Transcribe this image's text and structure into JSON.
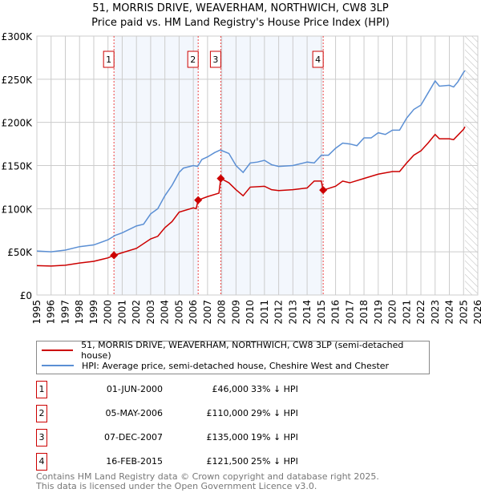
{
  "chart_data": {
    "type": "line",
    "title": "51, MORRIS DRIVE, WEAVERHAM, NORTHWICH, CW8 3LP",
    "subtitle": "Price paid vs. HM Land Registry's House Price Index (HPI)",
    "xlim": [
      1995,
      2026
    ],
    "ylim": [
      0,
      300000
    ],
    "yticks": [
      {
        "v": 0,
        "label": "£0"
      },
      {
        "v": 50000,
        "label": "£50K"
      },
      {
        "v": 100000,
        "label": "£100K"
      },
      {
        "v": 150000,
        "label": "£150K"
      },
      {
        "v": 200000,
        "label": "£200K"
      },
      {
        "v": 250000,
        "label": "£250K"
      },
      {
        "v": 300000,
        "label": "£300K"
      }
    ],
    "xticks": [
      "1995",
      "1996",
      "1997",
      "1998",
      "1999",
      "2000",
      "2001",
      "2002",
      "2003",
      "2004",
      "2005",
      "2006",
      "2007",
      "2008",
      "2009",
      "2010",
      "2011",
      "2012",
      "2013",
      "2014",
      "2015",
      "2016",
      "2017",
      "2018",
      "2019",
      "2020",
      "2021",
      "2022",
      "2023",
      "2024",
      "2025",
      "2026"
    ],
    "grid": true,
    "shaded_ranges": [
      [
        2000.42,
        2006.34
      ],
      [
        2007.93,
        2015.13
      ]
    ],
    "forecast_hatch_from": 2025.1,
    "series": [
      {
        "name": "51, MORRIS DRIVE, WEAVERHAM, NORTHWICH, CW8 3LP (semi-detached house)",
        "color": "#cc0000",
        "x": [
          1995,
          1996,
          1997,
          1998,
          1999,
          2000,
          2000.42,
          2001,
          2002,
          2003,
          2003.5,
          2004,
          2004.5,
          2005,
          2006,
          2006.2,
          2006.34,
          2007,
          2007.8,
          2007.93,
          2008.5,
          2009,
          2009.5,
          2010,
          2011,
          2011.5,
          2012,
          2013,
          2014,
          2014.5,
          2015.0,
          2015.13,
          2016,
          2016.5,
          2017,
          2018,
          2019,
          2020,
          2020.5,
          2021,
          2021.5,
          2022,
          2022.5,
          2023,
          2023.3,
          2024,
          2024.3,
          2025,
          2025.1
        ],
        "y": [
          34000,
          33500,
          34500,
          37000,
          39000,
          43000,
          46000,
          49000,
          54000,
          65000,
          68000,
          78000,
          85000,
          96000,
          101000,
          100000,
          110000,
          114000,
          118000,
          135000,
          130000,
          122000,
          115000,
          125000,
          126000,
          122000,
          121000,
          122000,
          124000,
          132000,
          132000,
          121500,
          126000,
          132000,
          130000,
          135000,
          140000,
          143000,
          143000,
          153000,
          162000,
          167000,
          176000,
          186000,
          181000,
          181000,
          180000,
          192000,
          195000
        ]
      },
      {
        "name": "HPI: Average price, semi-detached house, Cheshire West and Chester",
        "color": "#5b8fd4",
        "x": [
          1995,
          1996,
          1997,
          1998,
          1999,
          2000,
          2000.5,
          2001,
          2002,
          2002.5,
          2003,
          2003.5,
          2004,
          2004.5,
          2005,
          2005.3,
          2006,
          2006.3,
          2006.6,
          2007,
          2007.5,
          2007.9,
          2008.5,
          2009,
          2009.5,
          2010,
          2010.5,
          2011,
          2011.5,
          2012,
          2013,
          2014,
          2014.5,
          2015,
          2015.5,
          2016,
          2016.5,
          2017,
          2017.5,
          2018,
          2018.5,
          2019,
          2019.5,
          2020,
          2020.5,
          2021,
          2021.5,
          2022,
          2022.5,
          2023,
          2023.3,
          2024,
          2024.3,
          2024.6,
          2025,
          2025.1
        ],
        "y": [
          51000,
          50000,
          52000,
          56000,
          58000,
          64000,
          69000,
          72000,
          80000,
          82000,
          94000,
          100000,
          115000,
          127000,
          142000,
          147000,
          150000,
          149000,
          157000,
          160000,
          165000,
          168000,
          164000,
          150000,
          142000,
          153000,
          154000,
          156000,
          151000,
          149000,
          150000,
          154000,
          153000,
          162000,
          162000,
          170000,
          176000,
          175000,
          173000,
          182000,
          182000,
          188000,
          186000,
          191000,
          191000,
          205000,
          215000,
          220000,
          234000,
          248000,
          242000,
          243000,
          241000,
          247000,
          258000,
          260000
        ]
      }
    ],
    "sales": [
      {
        "n": "1",
        "date": "01-JUN-2000",
        "price": "£46,000",
        "hpi": "33% ↓ HPI",
        "x": 2000.42,
        "y": 46000
      },
      {
        "n": "2",
        "date": "05-MAY-2006",
        "price": "£110,000",
        "hpi": "29% ↓ HPI",
        "x": 2006.34,
        "y": 110000
      },
      {
        "n": "3",
        "date": "07-DEC-2007",
        "price": "£135,000",
        "hpi": "19% ↓ HPI",
        "x": 2007.93,
        "y": 135000
      },
      {
        "n": "4",
        "date": "16-FEB-2015",
        "price": "£121,500",
        "hpi": "25% ↓ HPI",
        "x": 2015.13,
        "y": 121500
      }
    ]
  },
  "footer": {
    "line1": "Contains HM Land Registry data © Crown copyright and database right 2025.",
    "line2": "This data is licensed under the Open Government Licence v3.0."
  }
}
